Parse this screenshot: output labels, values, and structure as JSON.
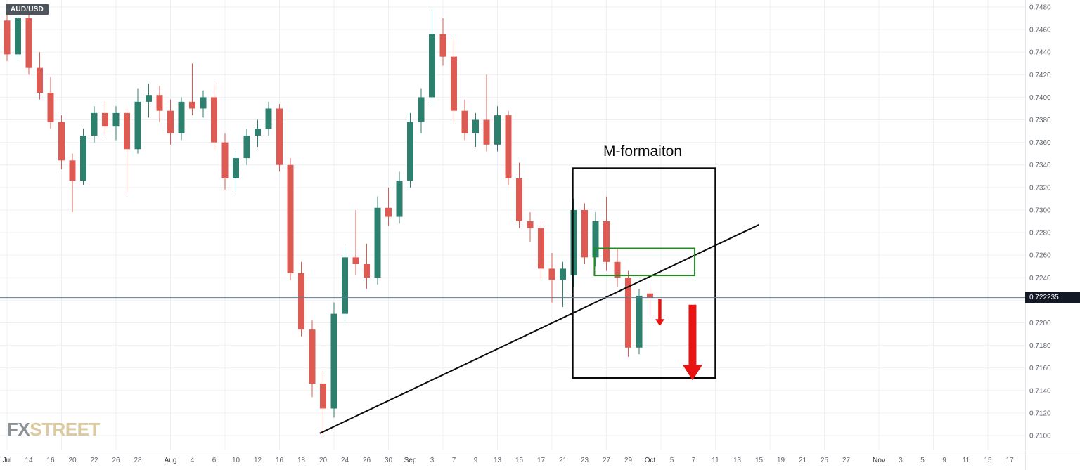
{
  "symbol_badge": {
    "label": "AUD/USD",
    "bg": "#4d545c",
    "text_color": "#ffffff"
  },
  "watermark": {
    "part1": "FX",
    "part2": "STREET",
    "fx_color": "#8c9196",
    "street_color": "#dbc9a0"
  },
  "current_price": {
    "value": "0.722235",
    "price": 0.722235,
    "line_color": "#5b7b99",
    "badge_bg": "#131a26",
    "badge_text": "#ffffff"
  },
  "price_axis": {
    "labels": [
      "0.7480",
      "0.7460",
      "0.7440",
      "0.7420",
      "0.7400",
      "0.7380",
      "0.7360",
      "0.7340",
      "0.7320",
      "0.7300",
      "0.7280",
      "0.7260",
      "0.7240",
      "0.7220",
      "0.7200",
      "0.7180",
      "0.7160",
      "0.7140",
      "0.7120",
      "0.7100"
    ]
  },
  "time_axis": {
    "labels": [
      {
        "i": 0,
        "t": "Jul",
        "m": true
      },
      {
        "i": 2,
        "t": "14"
      },
      {
        "i": 4,
        "t": "16"
      },
      {
        "i": 6,
        "t": "20"
      },
      {
        "i": 8,
        "t": "22"
      },
      {
        "i": 10,
        "t": "26"
      },
      {
        "i": 12,
        "t": "28"
      },
      {
        "i": 15,
        "t": "Aug",
        "m": true
      },
      {
        "i": 17,
        "t": "4"
      },
      {
        "i": 19,
        "t": "6"
      },
      {
        "i": 21,
        "t": "10"
      },
      {
        "i": 23,
        "t": "12"
      },
      {
        "i": 25,
        "t": "16"
      },
      {
        "i": 27,
        "t": "18"
      },
      {
        "i": 29,
        "t": "20"
      },
      {
        "i": 31,
        "t": "24"
      },
      {
        "i": 33,
        "t": "26"
      },
      {
        "i": 35,
        "t": "30"
      },
      {
        "i": 37,
        "t": "Sep",
        "m": true
      },
      {
        "i": 39,
        "t": "3"
      },
      {
        "i": 41,
        "t": "7"
      },
      {
        "i": 43,
        "t": "9"
      },
      {
        "i": 45,
        "t": "13"
      },
      {
        "i": 47,
        "t": "15"
      },
      {
        "i": 49,
        "t": "17"
      },
      {
        "i": 51,
        "t": "21"
      },
      {
        "i": 53,
        "t": "23"
      },
      {
        "i": 55,
        "t": "27"
      },
      {
        "i": 57,
        "t": "29"
      },
      {
        "i": 59,
        "t": "Oct",
        "m": true
      },
      {
        "i": 61,
        "t": "5"
      },
      {
        "i": 63,
        "t": "7"
      },
      {
        "i": 65,
        "t": "11"
      },
      {
        "i": 67,
        "t": "13"
      },
      {
        "i": 69,
        "t": "15"
      },
      {
        "i": 71,
        "t": "19"
      },
      {
        "i": 73,
        "t": "21"
      },
      {
        "i": 75,
        "t": "25"
      },
      {
        "i": 77,
        "t": "27"
      },
      {
        "i": 80,
        "t": "Nov",
        "m": true
      },
      {
        "i": 82,
        "t": "3"
      },
      {
        "i": 84,
        "t": "5"
      },
      {
        "i": 86,
        "t": "9"
      },
      {
        "i": 88,
        "t": "11"
      },
      {
        "i": 90,
        "t": "15"
      },
      {
        "i": 92,
        "t": "17"
      }
    ],
    "grid_indices": [
      0,
      5,
      10,
      15,
      20,
      25,
      30,
      35,
      40,
      45,
      50,
      55,
      60,
      65,
      70,
      75,
      80,
      85,
      90
    ]
  },
  "annotations": {
    "m_label": {
      "text": "M-formaiton",
      "color": "#0a0a0a"
    },
    "m_box": {
      "index_from": 51.9,
      "index_to": 65.0,
      "price_top": 0.7337,
      "price_bottom": 0.7151,
      "color": "#0a0a0a",
      "stroke_width": 2.5
    },
    "neckline_box": {
      "index_from": 53.9,
      "index_to": 63.1,
      "price_top": 0.7266,
      "price_bottom": 0.7242,
      "color": "#228b22",
      "stroke_width": 2
    },
    "trendline": {
      "from_index": 28.7,
      "from_price": 0.7102,
      "to_index": 69.0,
      "to_price": 0.7287,
      "color": "#0a0a0a",
      "stroke_width": 2
    },
    "arrows": [
      {
        "index": 59.9,
        "price_from": 0.7221,
        "price_to": 0.7197,
        "shaft_width": 4.5,
        "head_width": 13,
        "head_length": 10,
        "color": "#e81414"
      },
      {
        "index": 62.9,
        "price_from": 0.7216,
        "price_to": 0.7149,
        "shaft_width": 11,
        "head_width": 28,
        "head_length": 22,
        "color": "#e81414"
      }
    ]
  },
  "chart_data": {
    "type": "candlestick",
    "symbol": "AUD/USD",
    "ylim": [
      0.71,
      0.748
    ],
    "price_step": 0.002,
    "grid": true,
    "colors": {
      "up": "#2d7f6e",
      "down": "#dd5b52",
      "grid": "#edf0f4",
      "axis_text": "#60656e",
      "month_text": "#363b42",
      "separator": "#e2e5ea"
    },
    "candles": [
      {
        "d": "Jul 12",
        "o": 0.7468,
        "h": 0.7478,
        "l": 0.7432,
        "c": 0.7438
      },
      {
        "d": "Jul 13",
        "o": 0.7438,
        "h": 0.7474,
        "l": 0.7434,
        "c": 0.747
      },
      {
        "d": "Jul 14",
        "o": 0.747,
        "h": 0.7476,
        "l": 0.742,
        "c": 0.7426
      },
      {
        "d": "Jul 15",
        "o": 0.7426,
        "h": 0.744,
        "l": 0.7398,
        "c": 0.7404
      },
      {
        "d": "Jul 16",
        "o": 0.7404,
        "h": 0.7418,
        "l": 0.7372,
        "c": 0.7378
      },
      {
        "d": "Jul 19",
        "o": 0.7378,
        "h": 0.7384,
        "l": 0.7336,
        "c": 0.7344
      },
      {
        "d": "Jul 20",
        "o": 0.7344,
        "h": 0.735,
        "l": 0.7298,
        "c": 0.7326
      },
      {
        "d": "Jul 21",
        "o": 0.7326,
        "h": 0.7372,
        "l": 0.7322,
        "c": 0.7366
      },
      {
        "d": "Jul 22",
        "o": 0.7366,
        "h": 0.7392,
        "l": 0.736,
        "c": 0.7386
      },
      {
        "d": "Jul 23",
        "o": 0.7386,
        "h": 0.7396,
        "l": 0.7366,
        "c": 0.7374
      },
      {
        "d": "Jul 26",
        "o": 0.7374,
        "h": 0.7392,
        "l": 0.7362,
        "c": 0.7386
      },
      {
        "d": "Jul 27",
        "o": 0.7386,
        "h": 0.739,
        "l": 0.7315,
        "c": 0.7354
      },
      {
        "d": "Jul 28",
        "o": 0.7354,
        "h": 0.7408,
        "l": 0.735,
        "c": 0.7396
      },
      {
        "d": "Jul 29",
        "o": 0.7396,
        "h": 0.7412,
        "l": 0.7382,
        "c": 0.7402
      },
      {
        "d": "Jul 30",
        "o": 0.7402,
        "h": 0.741,
        "l": 0.7378,
        "c": 0.7388
      },
      {
        "d": "Aug 2",
        "o": 0.7388,
        "h": 0.7398,
        "l": 0.7358,
        "c": 0.7368
      },
      {
        "d": "Aug 3",
        "o": 0.7368,
        "h": 0.74,
        "l": 0.7362,
        "c": 0.7396
      },
      {
        "d": "Aug 4",
        "o": 0.7396,
        "h": 0.743,
        "l": 0.7384,
        "c": 0.739
      },
      {
        "d": "Aug 5",
        "o": 0.739,
        "h": 0.7406,
        "l": 0.7382,
        "c": 0.74
      },
      {
        "d": "Aug 6",
        "o": 0.74,
        "h": 0.7412,
        "l": 0.7354,
        "c": 0.736
      },
      {
        "d": "Aug 9",
        "o": 0.736,
        "h": 0.7368,
        "l": 0.7318,
        "c": 0.7328
      },
      {
        "d": "Aug 10",
        "o": 0.7328,
        "h": 0.7352,
        "l": 0.7316,
        "c": 0.7346
      },
      {
        "d": "Aug 11",
        "o": 0.7346,
        "h": 0.7372,
        "l": 0.734,
        "c": 0.7366
      },
      {
        "d": "Aug 12",
        "o": 0.7366,
        "h": 0.738,
        "l": 0.7356,
        "c": 0.7372
      },
      {
        "d": "Aug 13",
        "o": 0.7372,
        "h": 0.7396,
        "l": 0.7366,
        "c": 0.739
      },
      {
        "d": "Aug 16",
        "o": 0.739,
        "h": 0.7394,
        "l": 0.7334,
        "c": 0.734
      },
      {
        "d": "Aug 17",
        "o": 0.734,
        "h": 0.7346,
        "l": 0.7238,
        "c": 0.7244
      },
      {
        "d": "Aug 18",
        "o": 0.7244,
        "h": 0.7254,
        "l": 0.7188,
        "c": 0.7194
      },
      {
        "d": "Aug 19",
        "o": 0.7194,
        "h": 0.7202,
        "l": 0.7134,
        "c": 0.7146
      },
      {
        "d": "Aug 20",
        "o": 0.7146,
        "h": 0.7156,
        "l": 0.71,
        "c": 0.7124
      },
      {
        "d": "Aug 23",
        "o": 0.7124,
        "h": 0.7218,
        "l": 0.7116,
        "c": 0.7208
      },
      {
        "d": "Aug 24",
        "o": 0.7208,
        "h": 0.7268,
        "l": 0.7202,
        "c": 0.7258
      },
      {
        "d": "Aug 25",
        "o": 0.7258,
        "h": 0.73,
        "l": 0.7242,
        "c": 0.7252
      },
      {
        "d": "Aug 26",
        "o": 0.7252,
        "h": 0.727,
        "l": 0.723,
        "c": 0.724
      },
      {
        "d": "Aug 27",
        "o": 0.724,
        "h": 0.7312,
        "l": 0.7234,
        "c": 0.7302
      },
      {
        "d": "Aug 30",
        "o": 0.7302,
        "h": 0.732,
        "l": 0.7286,
        "c": 0.7294
      },
      {
        "d": "Aug 31",
        "o": 0.7294,
        "h": 0.7334,
        "l": 0.7288,
        "c": 0.7326
      },
      {
        "d": "Sep 1",
        "o": 0.7326,
        "h": 0.7386,
        "l": 0.732,
        "c": 0.7378
      },
      {
        "d": "Sep 2",
        "o": 0.7378,
        "h": 0.7408,
        "l": 0.7368,
        "c": 0.74
      },
      {
        "d": "Sep 3",
        "o": 0.74,
        "h": 0.7478,
        "l": 0.7394,
        "c": 0.7456
      },
      {
        "d": "Sep 6",
        "o": 0.7456,
        "h": 0.747,
        "l": 0.7428,
        "c": 0.7436
      },
      {
        "d": "Sep 7",
        "o": 0.7436,
        "h": 0.7452,
        "l": 0.7378,
        "c": 0.7388
      },
      {
        "d": "Sep 8",
        "o": 0.7388,
        "h": 0.7398,
        "l": 0.7362,
        "c": 0.7368
      },
      {
        "d": "Sep 9",
        "o": 0.7368,
        "h": 0.7386,
        "l": 0.7356,
        "c": 0.738
      },
      {
        "d": "Sep 10",
        "o": 0.738,
        "h": 0.742,
        "l": 0.7352,
        "c": 0.7358
      },
      {
        "d": "Sep 13",
        "o": 0.7358,
        "h": 0.7392,
        "l": 0.7352,
        "c": 0.7384
      },
      {
        "d": "Sep 14",
        "o": 0.7384,
        "h": 0.7388,
        "l": 0.7322,
        "c": 0.7328
      },
      {
        "d": "Sep 15",
        "o": 0.7328,
        "h": 0.7342,
        "l": 0.7284,
        "c": 0.729
      },
      {
        "d": "Sep 16",
        "o": 0.729,
        "h": 0.7298,
        "l": 0.7272,
        "c": 0.7284
      },
      {
        "d": "Sep 17",
        "o": 0.7284,
        "h": 0.7288,
        "l": 0.7238,
        "c": 0.7248
      },
      {
        "d": "Sep 20",
        "o": 0.7248,
        "h": 0.7262,
        "l": 0.7218,
        "c": 0.7238
      },
      {
        "d": "Sep 21",
        "o": 0.7238,
        "h": 0.7254,
        "l": 0.7214,
        "c": 0.7248
      },
      {
        "d": "Sep 22",
        "o": 0.7242,
        "h": 0.731,
        "l": 0.7232,
        "c": 0.73
      },
      {
        "d": "Sep 23",
        "o": 0.73,
        "h": 0.7306,
        "l": 0.7252,
        "c": 0.7258
      },
      {
        "d": "Sep 24",
        "o": 0.7258,
        "h": 0.7298,
        "l": 0.725,
        "c": 0.729
      },
      {
        "d": "Sep 27",
        "o": 0.729,
        "h": 0.7312,
        "l": 0.7246,
        "c": 0.7254
      },
      {
        "d": "Sep 28",
        "o": 0.7254,
        "h": 0.7266,
        "l": 0.7232,
        "c": 0.724
      },
      {
        "d": "Sep 29",
        "o": 0.724,
        "h": 0.7246,
        "l": 0.717,
        "c": 0.7178
      },
      {
        "d": "Sep 30",
        "o": 0.7178,
        "h": 0.723,
        "l": 0.7172,
        "c": 0.7224
      },
      {
        "d": "Oct 1",
        "o": 0.7226,
        "h": 0.7232,
        "l": 0.7206,
        "c": 0.72224
      }
    ]
  }
}
